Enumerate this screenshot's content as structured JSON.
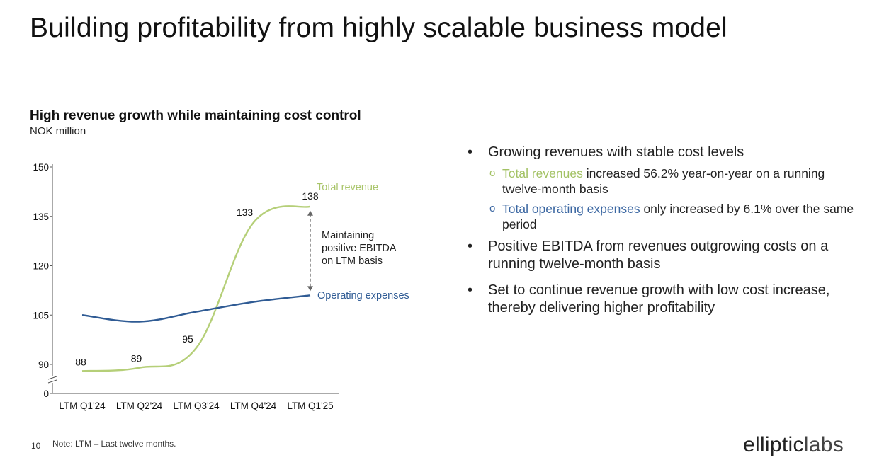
{
  "header": {
    "title": "Building profitability from highly scalable business model"
  },
  "chart_header": {
    "title": "High revenue growth while maintaining cost control",
    "unit": "NOK million"
  },
  "chart_data": {
    "type": "line",
    "title": "High revenue growth while maintaining cost control",
    "subtitle": "NOK million",
    "categories": [
      "LTM Q1'24",
      "LTM Q2'24",
      "LTM Q3'24",
      "LTM Q4'24",
      "LTM Q1'25"
    ],
    "y_ticks": [
      0,
      90,
      105,
      120,
      135,
      150
    ],
    "y_axis_break": true,
    "ylim": [
      90,
      150
    ],
    "grid": false,
    "series": [
      {
        "name": "Total revenue",
        "values": [
          88,
          89,
          95,
          133,
          138
        ],
        "color": "#b5cf78",
        "data_labels": true
      },
      {
        "name": "Operating expenses",
        "values": [
          105,
          103,
          106,
          109,
          111
        ],
        "color": "#2f5b94",
        "data_labels": false
      }
    ],
    "annotation": {
      "text": [
        "Maintaining",
        "positive EBITDA",
        "on LTM basis"
      ]
    }
  },
  "bullets": [
    {
      "text": "Growing revenues with stable cost levels",
      "sub": [
        {
          "highlight": "Total revenues",
          "highlight_kind": "rev",
          "rest": " increased 56.2% year-on-year on a running twelve-month basis"
        },
        {
          "highlight": "Total operating expenses",
          "highlight_kind": "opex",
          "rest": " only increased by 6.1% over the same period"
        }
      ]
    },
    {
      "text": "Positive EBITDA from revenues outgrowing costs on a running twelve-month basis",
      "sub": []
    },
    {
      "text": "Set to continue revenue growth with low cost increase, thereby delivering higher profitability",
      "sub": []
    }
  ],
  "footer": {
    "page_number": "10",
    "note": "Note: LTM – Last twelve months.",
    "logo_bold": "elliptic",
    "logo_light": "labs"
  }
}
